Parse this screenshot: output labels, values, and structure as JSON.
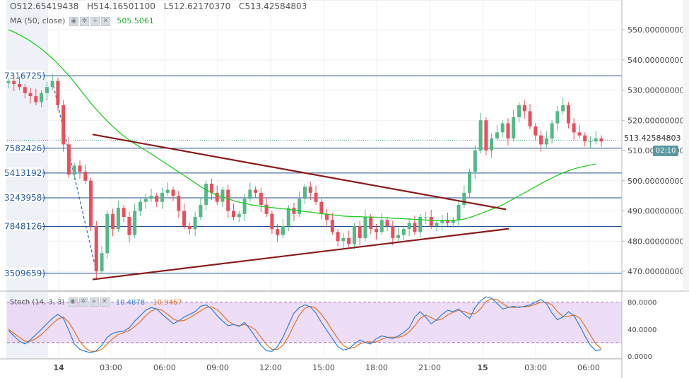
{
  "header": {
    "ohlc": [
      {
        "label": "O",
        "value": "512.65419438"
      },
      {
        "label": "H",
        "value": "514.16501100"
      },
      {
        "label": "L",
        "value": "512.62170370"
      },
      {
        "label": "C",
        "value": "513.42584803"
      }
    ],
    "ma_label": "MA (50, close)",
    "ma_value": "505.5061"
  },
  "stoch": {
    "label": "Stoch (14, 3, 3)",
    "k_value": "10.4878",
    "d_value": "10.9467",
    "levels": [
      "80.0000",
      "40.0000",
      "0.0000"
    ]
  },
  "price_tag": "513.42584803",
  "countdown": "02:10",
  "colors": {
    "up": "#53b987",
    "down": "#eb4d5c",
    "ma": "#22cc22",
    "trendline": "#8b1a1a",
    "hline": "#1f4e8c",
    "stoch_k": "#2f7fd9",
    "stoch_d": "#e0721f",
    "stoch_band": "#e8d2f4"
  },
  "chart_data": {
    "type": "candlestick",
    "x_axis_labels": [
      "14",
      "03:00",
      "06:00",
      "09:00",
      "12:00",
      "15:00",
      "18:00",
      "21:00",
      "15",
      "03:00",
      "06:00"
    ],
    "y_axis_labels": [
      "550.00000000",
      "540.00000000",
      "530.00000000",
      "520.00000000",
      "510.00000000",
      "500.00000000",
      "490.00000000",
      "480.00000000",
      "470.00000000"
    ],
    "ylim": [
      466,
      558
    ],
    "horizontal_levels": [
      {
        "price": 534.73,
        "label": "7316725)"
      },
      {
        "price": 510.76,
        "label": "7582426)"
      },
      {
        "price": 502.54,
        "label": "5413192)"
      },
      {
        "price": 494.32,
        "label": "3243958)"
      },
      {
        "price": 484.85,
        "label": "7848126)"
      },
      {
        "price": 469.35,
        "label": "3509659)"
      }
    ],
    "trendlines": [
      {
        "name": "upper",
        "from": [
          -30,
          515.3
        ],
        "to": [
          189,
          490.5
        ]
      },
      {
        "name": "lower",
        "from": [
          -30,
          467.3
        ],
        "to": [
          184,
          484.1
        ]
      }
    ],
    "closes": [
      533,
      532,
      531,
      529,
      528,
      526,
      529,
      531,
      533,
      525,
      512,
      502,
      505,
      503,
      500,
      485,
      470,
      476,
      489,
      484,
      491,
      488,
      482,
      490,
      493,
      494,
      495,
      493,
      496,
      497,
      495,
      490,
      485,
      484,
      488,
      492,
      499,
      496,
      493,
      497,
      490,
      488,
      489,
      494,
      497,
      496,
      492,
      489,
      484,
      482,
      485,
      491,
      489,
      494,
      498,
      496,
      493,
      489,
      487,
      483,
      480,
      481,
      479,
      485,
      481,
      488,
      484,
      483,
      487,
      485,
      481,
      482,
      484,
      486,
      483,
      488,
      488,
      485,
      486,
      487,
      486,
      487,
      492,
      496,
      503,
      510,
      520,
      510,
      514,
      516,
      519,
      514,
      521,
      525,
      523,
      518,
      515,
      512,
      514,
      519,
      523,
      525,
      519,
      516,
      515,
      513,
      513,
      514,
      513
    ],
    "ma50_start": 527.2,
    "ma50": [
      550,
      549.2,
      548.3,
      547.3,
      546.2,
      545,
      543.6,
      542.1,
      540.5,
      538.7,
      536.8,
      534.8,
      532.6,
      530.3,
      528,
      525.7,
      523.6,
      521.6,
      519.7,
      517.9,
      516.3,
      514.8,
      513.4,
      512.2,
      511.1,
      510,
      508.9,
      507.7,
      506.5,
      505.3,
      504.1,
      502.9,
      501.7,
      500.5,
      499.3,
      498.1,
      497,
      496,
      495.2,
      494.6,
      494,
      493.4,
      492.9,
      492.5,
      492.1,
      491.8,
      491.5,
      491.3,
      491.1,
      490.9,
      490.7,
      490.5,
      490.3,
      490,
      489.8,
      489.6,
      489.4,
      489.1,
      488.9,
      488.7,
      488.5,
      488.3,
      488.2,
      488.1,
      488.1,
      488,
      488,
      487.9,
      487.8,
      487.7,
      487.6,
      487.5,
      487.4,
      487.3,
      487.2,
      487.1,
      487,
      486.9,
      486.8,
      486.8,
      486.8,
      486.9,
      487,
      487.3,
      487.8,
      488.4,
      489.1,
      489.8,
      490.5,
      491.2,
      492,
      493,
      494,
      495,
      496,
      497,
      498,
      499,
      500,
      500.9,
      501.8,
      502.6,
      503.3,
      503.9,
      504.4,
      504.8,
      505.2,
      505.5
    ],
    "stoch_k": [
      38,
      30,
      22,
      18,
      24,
      32,
      40,
      48,
      56,
      62,
      56,
      38,
      18,
      10,
      7,
      5,
      8,
      16,
      28,
      34,
      36,
      37,
      42,
      52,
      60,
      68,
      72,
      70,
      62,
      55,
      48,
      52,
      58,
      62,
      66,
      74,
      76,
      70,
      60,
      52,
      45,
      47,
      44,
      50,
      40,
      28,
      16,
      8,
      7,
      14,
      28,
      46,
      64,
      72,
      76,
      73,
      64,
      50,
      38,
      26,
      14,
      9,
      11,
      18,
      24,
      20,
      18,
      26,
      30,
      28,
      26,
      30,
      35,
      42,
      58,
      66,
      58,
      48,
      54,
      62,
      68,
      66,
      70,
      62,
      56,
      72,
      82,
      88,
      86,
      78,
      70,
      72,
      74,
      72,
      74,
      76,
      80,
      84,
      78,
      64,
      54,
      58,
      66,
      60,
      46,
      30,
      16,
      8,
      10
    ],
    "stoch_d": [
      40,
      34,
      28,
      22,
      22,
      26,
      32,
      40,
      48,
      55,
      58,
      50,
      37,
      22,
      12,
      7,
      7,
      10,
      18,
      26,
      32,
      35,
      38,
      44,
      51,
      60,
      67,
      70,
      68,
      62,
      55,
      52,
      53,
      57,
      62,
      67,
      72,
      73,
      69,
      61,
      52,
      47,
      45,
      47,
      44,
      39,
      28,
      17,
      10,
      10,
      16,
      29,
      46,
      61,
      71,
      74,
      71,
      62,
      51,
      38,
      26,
      16,
      11,
      13,
      18,
      21,
      21,
      21,
      25,
      28,
      28,
      28,
      30,
      36,
      45,
      56,
      61,
      57,
      53,
      55,
      61,
      65,
      68,
      66,
      63,
      63,
      70,
      81,
      85,
      84,
      78,
      73,
      72,
      73,
      73,
      74,
      77,
      80,
      80,
      76,
      66,
      59,
      59,
      61,
      57,
      45,
      31,
      18,
      11
    ]
  }
}
